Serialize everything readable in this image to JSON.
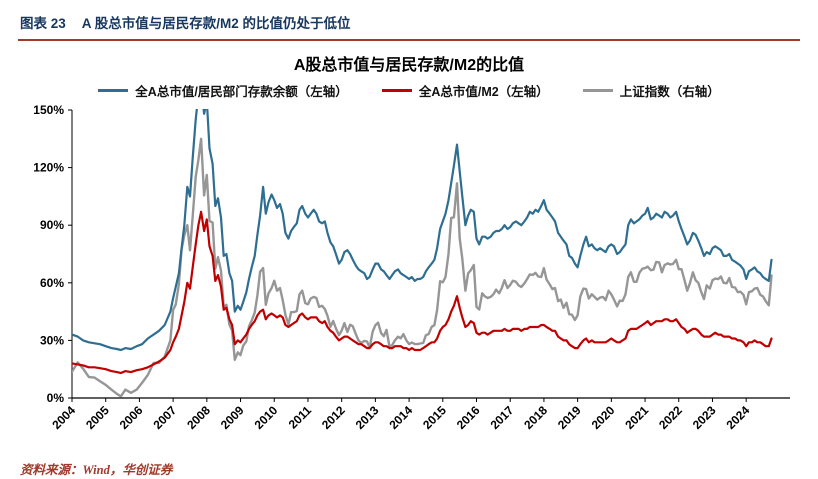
{
  "header": {
    "figure_no": "图表 23",
    "title": "A 股总市值与居民存款/M2 的比值仍处于低位"
  },
  "footer": {
    "source": "资料来源：Wind，华创证券"
  },
  "colors": {
    "header_text": "#17375E",
    "rule": "#A03A2B",
    "footer_text": "#A03A2B",
    "axis_text": "#000000"
  },
  "chart_data": {
    "type": "line",
    "title": "A股总市值与居民存款/M2的比值",
    "xlabel": "",
    "ylabel": "",
    "legend_position": "top",
    "grid": false,
    "x_domain": [
      2004,
      2025.3
    ],
    "left_axis_range": [
      0,
      150
    ],
    "y_ticks": [
      0,
      30,
      60,
      90,
      120,
      150
    ],
    "y_tick_labels": [
      "0%",
      "30%",
      "60%",
      "90%",
      "120%",
      "150%"
    ],
    "x_ticks": [
      2004,
      2005,
      2006,
      2007,
      2008,
      2009,
      2010,
      2011,
      2012,
      2013,
      2014,
      2015,
      2016,
      2017,
      2018,
      2019,
      2020,
      2021,
      2022,
      2023,
      2024
    ],
    "right_axis_labels_visible": false,
    "right_axis_range_estimate": [
      1000,
      6500
    ],
    "x": [
      2004.0,
      2004.17,
      2004.33,
      2004.5,
      2004.67,
      2004.83,
      2005.0,
      2005.17,
      2005.33,
      2005.45,
      2005.58,
      2005.75,
      2005.92,
      2006.08,
      2006.25,
      2006.42,
      2006.58,
      2006.75,
      2006.92,
      2007.0,
      2007.08,
      2007.17,
      2007.25,
      2007.33,
      2007.42,
      2007.5,
      2007.58,
      2007.67,
      2007.75,
      2007.83,
      2007.92,
      2008.0,
      2008.08,
      2008.17,
      2008.25,
      2008.33,
      2008.42,
      2008.5,
      2008.58,
      2008.67,
      2008.75,
      2008.83,
      2008.92,
      2009.0,
      2009.08,
      2009.17,
      2009.25,
      2009.33,
      2009.42,
      2009.5,
      2009.58,
      2009.67,
      2009.75,
      2009.83,
      2009.92,
      2010.0,
      2010.08,
      2010.17,
      2010.25,
      2010.33,
      2010.42,
      2010.5,
      2010.58,
      2010.67,
      2010.75,
      2010.83,
      2010.92,
      2011.0,
      2011.08,
      2011.17,
      2011.25,
      2011.33,
      2011.42,
      2011.5,
      2011.58,
      2011.67,
      2011.75,
      2011.83,
      2011.92,
      2012.0,
      2012.08,
      2012.17,
      2012.25,
      2012.33,
      2012.42,
      2012.5,
      2012.58,
      2012.67,
      2012.75,
      2012.83,
      2012.92,
      2013.0,
      2013.08,
      2013.17,
      2013.25,
      2013.33,
      2013.42,
      2013.5,
      2013.58,
      2013.67,
      2013.75,
      2013.83,
      2013.92,
      2014.0,
      2014.08,
      2014.17,
      2014.25,
      2014.33,
      2014.42,
      2014.5,
      2014.58,
      2014.67,
      2014.75,
      2014.83,
      2014.92,
      2015.0,
      2015.08,
      2015.17,
      2015.25,
      2015.33,
      2015.42,
      2015.5,
      2015.58,
      2015.67,
      2015.75,
      2015.83,
      2015.92,
      2016.0,
      2016.08,
      2016.17,
      2016.25,
      2016.33,
      2016.42,
      2016.5,
      2016.58,
      2016.67,
      2016.75,
      2016.83,
      2016.92,
      2017.0,
      2017.08,
      2017.17,
      2017.25,
      2017.33,
      2017.42,
      2017.5,
      2017.58,
      2017.67,
      2017.75,
      2017.83,
      2017.92,
      2018.0,
      2018.08,
      2018.17,
      2018.25,
      2018.33,
      2018.42,
      2018.5,
      2018.58,
      2018.67,
      2018.75,
      2018.83,
      2018.92,
      2019.0,
      2019.08,
      2019.17,
      2019.25,
      2019.33,
      2019.42,
      2019.5,
      2019.58,
      2019.67,
      2019.75,
      2019.83,
      2019.92,
      2020.0,
      2020.08,
      2020.17,
      2020.25,
      2020.33,
      2020.42,
      2020.5,
      2020.58,
      2020.67,
      2020.75,
      2020.83,
      2020.92,
      2021.0,
      2021.08,
      2021.17,
      2021.25,
      2021.33,
      2021.42,
      2021.5,
      2021.58,
      2021.67,
      2021.75,
      2021.83,
      2021.92,
      2022.0,
      2022.08,
      2022.17,
      2022.25,
      2022.33,
      2022.42,
      2022.5,
      2022.58,
      2022.67,
      2022.75,
      2022.83,
      2022.92,
      2023.0,
      2023.08,
      2023.17,
      2023.25,
      2023.33,
      2023.42,
      2023.5,
      2023.58,
      2023.67,
      2023.75,
      2023.83,
      2023.92,
      2024.0,
      2024.08,
      2024.17,
      2024.25,
      2024.33,
      2024.42,
      2024.5,
      2024.58,
      2024.67,
      2024.75
    ],
    "series": [
      {
        "name": "全A总市值/居民部门存款余额（左轴）",
        "axis": "left",
        "unit": "%",
        "color": "#2E6E91",
        "width": 2.2,
        "values": [
          33,
          32,
          30,
          29,
          28.5,
          28,
          27,
          26,
          25.5,
          25,
          26,
          25.5,
          27,
          28,
          31,
          33,
          35,
          38,
          45,
          52,
          58,
          65,
          78,
          90,
          110,
          105,
          125,
          145,
          158,
          163,
          148,
          155,
          130,
          122,
          100,
          104,
          94,
          74,
          75,
          65,
          61,
          45,
          48,
          46,
          50,
          55,
          62,
          68,
          74,
          85,
          95,
          110,
          96,
          102,
          106,
          103,
          99,
          101,
          96,
          86,
          83,
          87,
          89,
          91,
          98,
          100,
          96,
          94,
          96,
          98,
          96,
          92,
          91,
          92,
          86,
          81,
          79,
          75,
          70,
          72,
          76,
          77,
          75,
          72,
          69,
          67,
          66,
          65,
          62,
          63,
          67,
          70,
          70,
          67,
          66,
          64,
          62,
          64,
          66,
          67,
          65,
          64,
          63,
          62,
          63,
          61,
          62,
          62,
          63,
          66,
          68,
          70,
          72,
          78,
          88,
          92,
          96,
          103,
          112,
          121,
          132,
          118,
          105,
          90,
          95,
          98,
          97,
          83,
          80,
          84,
          84,
          83,
          84,
          86,
          87,
          87,
          88,
          90,
          88,
          89,
          91,
          92,
          91,
          90,
          92,
          94,
          97,
          96,
          98,
          97,
          100,
          103,
          98,
          96,
          94,
          92,
          86,
          84,
          82,
          80,
          74,
          73,
          70,
          68,
          74,
          80,
          84,
          79,
          80,
          78,
          77,
          78,
          77,
          76,
          79,
          80,
          79,
          75,
          76,
          78,
          80,
          90,
          93,
          91,
          92,
          93,
          95,
          96,
          99,
          93,
          94,
          96,
          95,
          94,
          97,
          96,
          94,
          95,
          97,
          92,
          88,
          84,
          80,
          82,
          86,
          85,
          82,
          78,
          74,
          76,
          75,
          78,
          79,
          78,
          77,
          74,
          74,
          75,
          72,
          71,
          70,
          69,
          67,
          62,
          66,
          67,
          68,
          66,
          65,
          63,
          62,
          61,
          72
        ]
      },
      {
        "name": "全A总市值/M2（左轴）",
        "axis": "left",
        "unit": "%",
        "color": "#C00000",
        "width": 2.2,
        "values": [
          18,
          17.5,
          17,
          16,
          16,
          15.5,
          15,
          14,
          13.5,
          13,
          14,
          13.5,
          14.5,
          15,
          16,
          17.5,
          19,
          21,
          25,
          29,
          32,
          36,
          43,
          50,
          60,
          57,
          68,
          80,
          90,
          97,
          87,
          93,
          79,
          74,
          61,
          64,
          58,
          46,
          47,
          41,
          38,
          28,
          30,
          29,
          31,
          33,
          36,
          38,
          40,
          43,
          45,
          46,
          41,
          43,
          44,
          43,
          42,
          43,
          42,
          38,
          37,
          38,
          39,
          40,
          43,
          44,
          42,
          41,
          42,
          42,
          42,
          40,
          39,
          40,
          37,
          35,
          34,
          32,
          30,
          31,
          32,
          32,
          31,
          30,
          29,
          28,
          28,
          27,
          26,
          26,
          28,
          29,
          29,
          28,
          27,
          27,
          26,
          26,
          27,
          27,
          27,
          26,
          26,
          25,
          26,
          25,
          25,
          25,
          26,
          27,
          28,
          29,
          29,
          31,
          35,
          37,
          38,
          41,
          45,
          48,
          53,
          47,
          42,
          37,
          38,
          40,
          39,
          34,
          33,
          34,
          34,
          33,
          34,
          35,
          35,
          35,
          35,
          36,
          35,
          35,
          36,
          36,
          36,
          35,
          36,
          36,
          37,
          37,
          37,
          37,
          38,
          38,
          37,
          36,
          35,
          35,
          32,
          31,
          30,
          30,
          28,
          27,
          26,
          26,
          28,
          30,
          31,
          29,
          30,
          29,
          29,
          29,
          29,
          29,
          30,
          31,
          30,
          29,
          29,
          30,
          31,
          35,
          36,
          36,
          36,
          37,
          38,
          39,
          40,
          38,
          39,
          40,
          40,
          40,
          41,
          41,
          40,
          40,
          41,
          39,
          37,
          36,
          34,
          35,
          36,
          36,
          35,
          33,
          32,
          32,
          32,
          33,
          34,
          33,
          33,
          32,
          32,
          32,
          31,
          31,
          30,
          30,
          29,
          27,
          29,
          29,
          30,
          29,
          29,
          28,
          27,
          27,
          31
        ]
      },
      {
        "name": "上证指数（右轴）",
        "axis": "right",
        "unit": "points",
        "color": "#969696",
        "width": 2.4,
        "values": [
          1500,
          1680,
          1560,
          1400,
          1390,
          1320,
          1250,
          1160,
          1080,
          1030,
          1160,
          1100,
          1160,
          1290,
          1440,
          1670,
          1670,
          1790,
          2100,
          2680,
          2790,
          3180,
          3840,
          4110,
          4300,
          3820,
          4470,
          5220,
          5550,
          5950,
          4870,
          5260,
          4380,
          4350,
          3470,
          3690,
          3430,
          2740,
          2780,
          2400,
          2290,
          1730,
          1870,
          1820,
          2000,
          2080,
          2370,
          2480,
          2630,
          2960,
          3410,
          3480,
          2780,
          3000,
          3100,
          3240,
          3050,
          3100,
          2870,
          2590,
          2400,
          2640,
          2640,
          2660,
          2980,
          3050,
          2810,
          2790,
          2900,
          2930,
          2910,
          2740,
          2760,
          2700,
          2570,
          2360,
          2470,
          2330,
          2200,
          2290,
          2430,
          2260,
          2400,
          2370,
          2220,
          2100,
          2050,
          2090,
          2080,
          1960,
          2270,
          2390,
          2440,
          2240,
          2180,
          2300,
          1980,
          2010,
          2100,
          2170,
          2140,
          2220,
          2100,
          2030,
          2060,
          2030,
          2030,
          2040,
          2050,
          2200,
          2220,
          2360,
          2390,
          2680,
          3230,
          3210,
          3310,
          3750,
          4440,
          4450,
          5100,
          4050,
          3660,
          3050,
          3380,
          3440,
          3540,
          2740,
          2690,
          3000,
          2940,
          2910,
          2930,
          2980,
          3070,
          3000,
          3100,
          3250,
          3100,
          3160,
          3240,
          3220,
          3150,
          3120,
          3190,
          3270,
          3360,
          3350,
          3390,
          3320,
          3310,
          3480,
          3260,
          3170,
          3080,
          3100,
          2850,
          2880,
          2720,
          2820,
          2600,
          2590,
          2490,
          2580,
          2940,
          3090,
          3080,
          2900,
          2980,
          2930,
          2880,
          2920,
          2930,
          2870,
          3050,
          2980,
          2880,
          2750,
          2860,
          2850,
          2980,
          3310,
          3400,
          3220,
          3220,
          3390,
          3470,
          3480,
          3510,
          3440,
          3450,
          3600,
          3590,
          3400,
          3540,
          3570,
          3550,
          3560,
          3640,
          3460,
          3460,
          3250,
          3050,
          3190,
          3400,
          3250,
          3200,
          3020,
          2890,
          3150,
          3090,
          3250,
          3280,
          3270,
          3320,
          3200,
          3190,
          3290,
          3120,
          3110,
          3020,
          3030,
          2970,
          2790,
          3020,
          3040,
          3090,
          3100,
          2970,
          2940,
          2850,
          2770,
          3340
        ]
      }
    ]
  }
}
